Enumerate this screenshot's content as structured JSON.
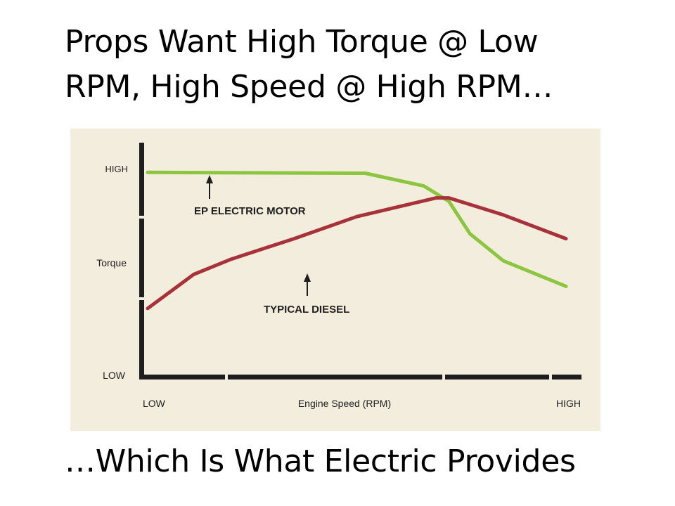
{
  "slide": {
    "title_line1": "Props Want High Torque @ Low",
    "title_line2": "RPM, High Speed @ High RPM…",
    "caption": "…Which Is What Electric Provides"
  },
  "chart_data": {
    "type": "line",
    "title": "",
    "xlabel": "Engine Speed (RPM)",
    "ylabel": "Torque",
    "x_ticks": [
      "LOW",
      "HIGH"
    ],
    "y_ticks": [
      "LOW",
      "HIGH"
    ],
    "xlim": [
      0,
      100
    ],
    "ylim": [
      0,
      100
    ],
    "grid": false,
    "legend": "none",
    "background_color": "#f3edde",
    "series": [
      {
        "name": "EP ELECTRIC MOTOR",
        "color": "#8cc63f",
        "points": [
          [
            0,
            97
          ],
          [
            52,
            96.5
          ],
          [
            66,
            89
          ],
          [
            72,
            80
          ],
          [
            77,
            61
          ],
          [
            85,
            45
          ],
          [
            100,
            30
          ]
        ]
      },
      {
        "name": "TYPICAL DIESEL",
        "color": "#a8323a",
        "points": [
          [
            0,
            17
          ],
          [
            11,
            37
          ],
          [
            20,
            46
          ],
          [
            35,
            58
          ],
          [
            50,
            71
          ],
          [
            69,
            82
          ],
          [
            72,
            82
          ],
          [
            85,
            72
          ],
          [
            100,
            58
          ]
        ]
      }
    ]
  }
}
